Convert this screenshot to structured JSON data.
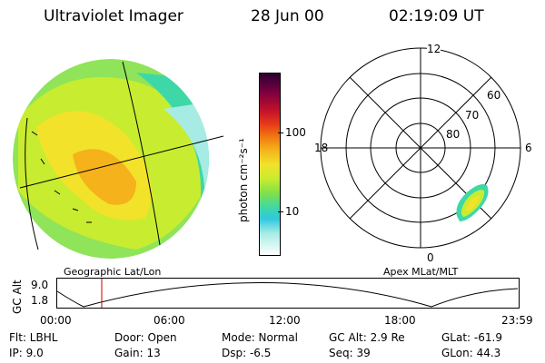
{
  "header": {
    "instrument": "Ultraviolet Imager",
    "date": "28 Jun 00",
    "time": "02:19:09 UT"
  },
  "left_panel": {
    "caption": "Geographic Lat/Lon"
  },
  "colorbar": {
    "unit_label": "photon cm⁻²s⁻¹",
    "ticks": [
      "100",
      "10"
    ],
    "colors": [
      "#2a0030",
      "#7a0040",
      "#c0102a",
      "#e83a1a",
      "#f07a10",
      "#f5b21a",
      "#f2e22a",
      "#c8ec30",
      "#7fe04a",
      "#3ed8a8",
      "#30c8e0",
      "#a6ece4",
      "#ffffff"
    ]
  },
  "polar_plot": {
    "caption": "Apex MLat/MLT",
    "mlt_labels": {
      "top": "12",
      "right": "6",
      "bottom": "0",
      "left": "18"
    },
    "lat_labels": [
      "60",
      "70",
      "80"
    ]
  },
  "altitude_plot": {
    "ylabel": "GC Alt",
    "yticks": [
      "9.0",
      "1.8"
    ],
    "xticks": [
      "00:00",
      "06:00",
      "12:00",
      "18:00",
      "23:59"
    ],
    "current_time_hours": 2.32,
    "marker_color": "#cc0000"
  },
  "status": {
    "row1": {
      "flt": "Flt: LBHL",
      "door": "Door: Open",
      "mode": "Mode: Normal",
      "gcalt": "GC Alt: 2.9 Re",
      "glat": "GLat: -61.9"
    },
    "row2": {
      "ip": "IP:  9.0",
      "gain": "Gain: 13",
      "dsp": "Dsp:   -6.5",
      "seq": "Seq: 39",
      "glon": "GLon:  44.3"
    }
  }
}
